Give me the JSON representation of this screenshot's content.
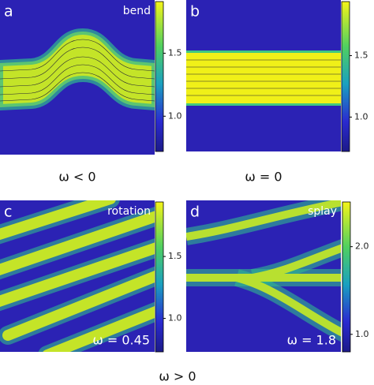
{
  "chart_data": [
    {
      "type": "heatmap",
      "title": "a",
      "label": "bend",
      "xlabel": "ω < 0",
      "clim": [
        0.72,
        1.91
      ],
      "cticks": [
        {
          "value": 1.0,
          "label": "1.0"
        },
        1.5
      ]
    },
    {
      "type": "heatmap",
      "title": "b",
      "xlabel": "ω = 0",
      "clim": [
        0.72,
        1.94
      ],
      "cticks": [
        {
          "value": 1.0,
          "label": "1.0"
        },
        1.5
      ]
    },
    {
      "type": "heatmap",
      "title": "c",
      "label": "rotation",
      "annotation": "ω = 0.45",
      "clim": [
        0.73,
        1.94
      ],
      "cticks": [
        {
          "value": 1.0,
          "label": "1.0"
        },
        1.5
      ]
    },
    {
      "type": "heatmap",
      "title": "d",
      "label": "splay",
      "annotation": "ω = 1.8",
      "clim": [
        0.8,
        2.51
      ],
      "cticks": [
        {
          "value": 1.0,
          "label": "1.0"
        },
        {
          "value": 2.0,
          "label": "2.0"
        }
      ]
    }
  ],
  "group_label": "ω > 0"
}
